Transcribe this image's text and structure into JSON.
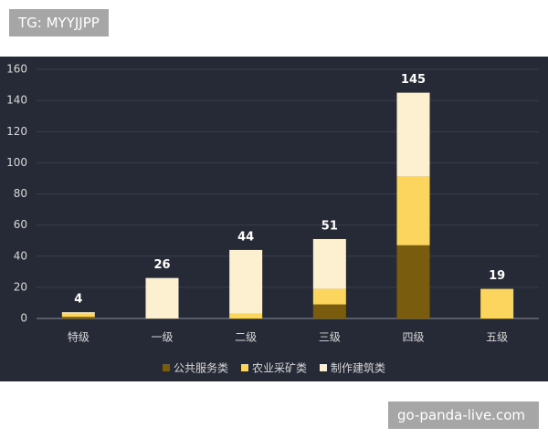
{
  "header_tag": "TG: MYYJJPP",
  "footer_tag": "go-panda-live.com",
  "chart_data": {
    "type": "stacked_bar",
    "categories": [
      "特级",
      "一级",
      "二级",
      "三级",
      "四级",
      "五级"
    ],
    "series": [
      {
        "name": "公共服务类",
        "color": "#7a5c0f",
        "values": [
          1,
          0,
          0,
          9,
          47,
          0
        ]
      },
      {
        "name": "农业采矿类",
        "color": "#fcd55f",
        "values": [
          2,
          0,
          3,
          10,
          44,
          19
        ]
      },
      {
        "name": "制作建筑类",
        "color": "#fdf0d0",
        "values": [
          1,
          26,
          41,
          32,
          54,
          0
        ]
      }
    ],
    "totals": [
      4,
      26,
      44,
      51,
      145,
      19
    ],
    "ylim": [
      0,
      160
    ],
    "yticks": [
      0,
      20,
      40,
      60,
      80,
      100,
      120,
      140,
      160
    ],
    "grid": true
  }
}
